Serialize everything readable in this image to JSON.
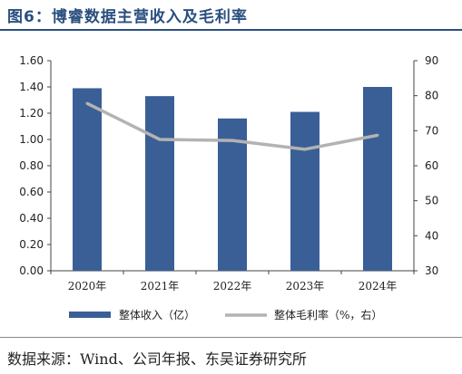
{
  "header": {
    "title": "图6：博睿数据主营收入及毛利率"
  },
  "footer": {
    "source": "数据来源：Wind、公司年报、东吴证券研究所"
  },
  "chart_data": {
    "type": "bar",
    "categories": [
      "2020年",
      "2021年",
      "2022年",
      "2023年",
      "2024年"
    ],
    "series": [
      {
        "name": "整体收入（亿）",
        "type": "bar",
        "axis": "left",
        "color": "#3a5f96",
        "values": [
          1.39,
          1.33,
          1.16,
          1.21,
          1.4
        ]
      },
      {
        "name": "整体毛利率（%，右）",
        "type": "line",
        "axis": "right",
        "color": "#b3b3b3",
        "values": [
          77.8,
          67.5,
          67.2,
          64.7,
          68.7
        ]
      }
    ],
    "y_left": {
      "ylim": [
        0,
        1.6
      ],
      "ticks": [
        "0.00",
        "0.20",
        "0.40",
        "0.60",
        "0.80",
        "1.00",
        "1.20",
        "1.40",
        "1.60"
      ]
    },
    "y_right": {
      "ylim": [
        30,
        90
      ],
      "ticks": [
        "30",
        "40",
        "50",
        "60",
        "70",
        "80",
        "90"
      ]
    },
    "grid": false,
    "legend": "bottom"
  }
}
